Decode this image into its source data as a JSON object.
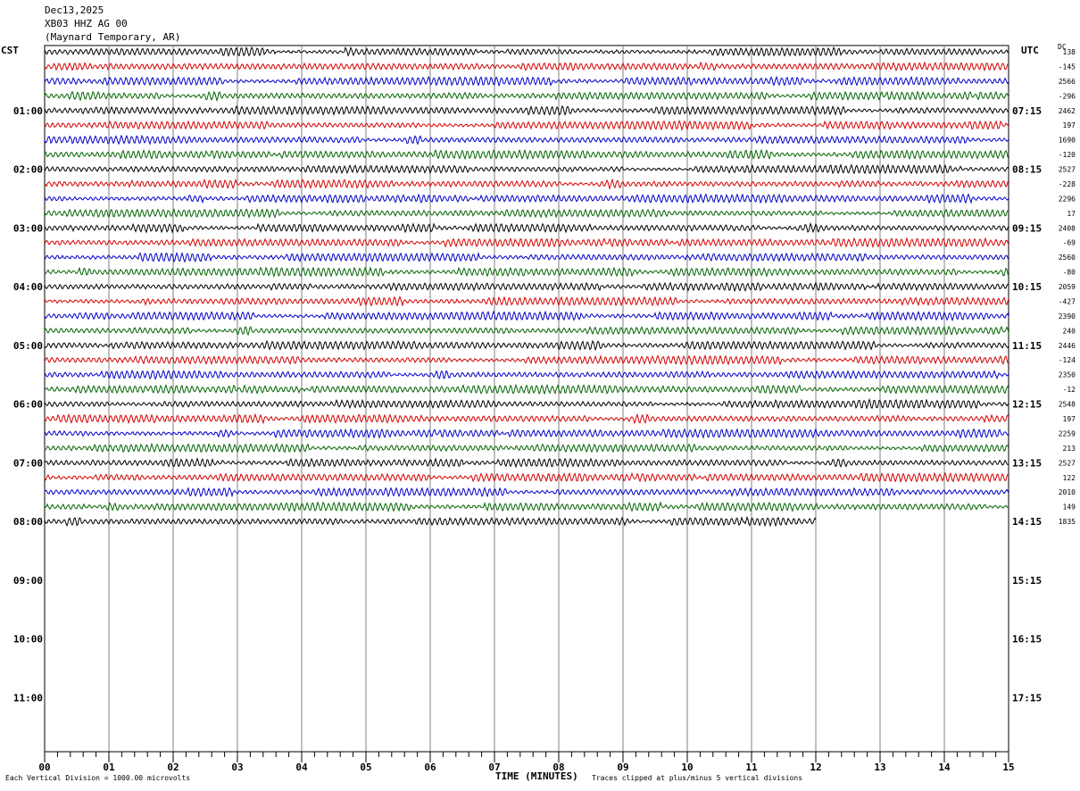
{
  "header": {
    "date": "Dec13,2025",
    "station": "XB03 HHZ AG 00",
    "location": "(Maynard Temporary, AR)"
  },
  "left_tz": "CST",
  "right_tz": "UTC",
  "dc_label": "DC",
  "footer": {
    "scale_note": "Each Vertical Division = 1000.00 microvolts",
    "axis_title": "TIME (MINUTES)",
    "clip_note": "Traces clipped at plus/minus 5 vertical divisions"
  },
  "colors": {
    "trace_cycle": [
      "#000000",
      "#d40000",
      "#0000c8",
      "#006400"
    ],
    "grid": "#808080"
  },
  "chart_data": {
    "type": "line",
    "x_ticks": [
      "00",
      "01",
      "02",
      "03",
      "04",
      "05",
      "06",
      "07",
      "08",
      "09",
      "10",
      "11",
      "12",
      "13",
      "14",
      "15"
    ],
    "xlim": [
      0,
      15
    ],
    "left_hours": [
      "01:00",
      "02:00",
      "03:00",
      "04:00",
      "05:00",
      "06:00",
      "07:00",
      "08:00",
      "09:00",
      "10:00",
      "11:00"
    ],
    "right_hours": [
      "07:15",
      "08:15",
      "09:15",
      "10:15",
      "11:15",
      "12:15",
      "13:15",
      "14:15",
      "15:15",
      "16:15",
      "17:15"
    ],
    "row_count": 33,
    "last_row_end_minute": 12,
    "dc_offsets": [
      "138",
      "-145",
      "2566",
      "-296",
      "2462",
      "197",
      "1690",
      "-120",
      "2527",
      "-228",
      "2296",
      "17",
      "2408",
      "-69",
      "2560",
      "-80",
      "2059",
      "-427",
      "2390",
      "240",
      "2446",
      "-124",
      "2350",
      "-12",
      "2548",
      "197",
      "2259",
      "213",
      "2527",
      "122",
      "2010",
      "149",
      "1835"
    ]
  }
}
